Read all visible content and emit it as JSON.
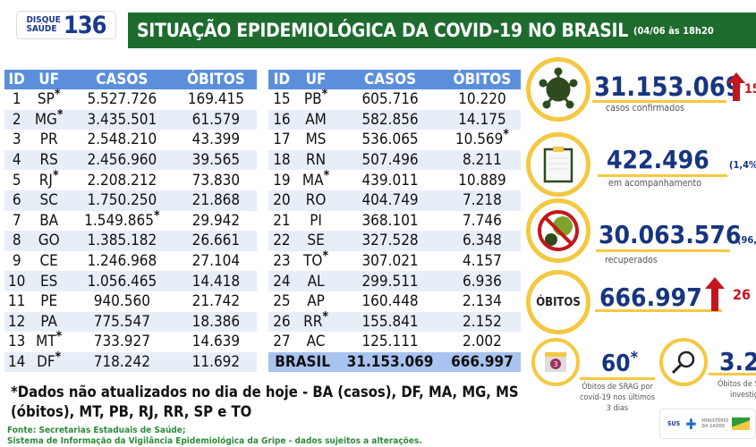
{
  "header": {
    "logo_top": "DISQUE",
    "logo_bottom": "SAÚDE",
    "logo_number": "136",
    "title": "SITUAÇÃO EPIDEMIOLÓGICA DA COVID-19 NO BRASIL",
    "date": "(04/06 às 18h20"
  },
  "table": {
    "columns": [
      "ID",
      "UF",
      "CASOS",
      "ÓBITOS"
    ],
    "left": [
      [
        "1",
        "SP",
        "5.527.726",
        "169.415",
        "uf"
      ],
      [
        "2",
        "MG",
        "3.435.501",
        "61.579",
        "uf"
      ],
      [
        "3",
        "PR",
        "2.548.210",
        "43.399",
        ""
      ],
      [
        "4",
        "RS",
        "2.456.960",
        "39.565",
        ""
      ],
      [
        "5",
        "RJ",
        "2.208.212",
        "73.830",
        "uf"
      ],
      [
        "6",
        "SC",
        "1.750.250",
        "21.868",
        ""
      ],
      [
        "7",
        "BA",
        "1.549.865",
        "29.942",
        "casos"
      ],
      [
        "8",
        "GO",
        "1.385.182",
        "26.661",
        ""
      ],
      [
        "9",
        "CE",
        "1.246.968",
        "27.104",
        ""
      ],
      [
        "10",
        "ES",
        "1.056.465",
        "14.418",
        ""
      ],
      [
        "11",
        "PE",
        "940.560",
        "21.742",
        ""
      ],
      [
        "12",
        "PA",
        "775.547",
        "18.386",
        ""
      ],
      [
        "13",
        "MT",
        "733.927",
        "14.639",
        "uf"
      ],
      [
        "14",
        "DF",
        "718.242",
        "11.692",
        "uf"
      ]
    ],
    "right": [
      [
        "15",
        "PB",
        "605.716",
        "10.220",
        "uf"
      ],
      [
        "16",
        "AM",
        "582.856",
        "14.175",
        ""
      ],
      [
        "17",
        "MS",
        "536.065",
        "10.569",
        "obitos"
      ],
      [
        "18",
        "RN",
        "507.496",
        "8.211",
        ""
      ],
      [
        "19",
        "MA",
        "439.011",
        "10.889",
        "uf"
      ],
      [
        "20",
        "RO",
        "404.749",
        "7.218",
        ""
      ],
      [
        "21",
        "PI",
        "368.101",
        "7.746",
        ""
      ],
      [
        "22",
        "SE",
        "327.528",
        "6.348",
        ""
      ],
      [
        "23",
        "TO",
        "307.021",
        "4.157",
        "uf"
      ],
      [
        "24",
        "AL",
        "299.511",
        "6.936",
        ""
      ],
      [
        "25",
        "AP",
        "160.448",
        "2.134",
        ""
      ],
      [
        "26",
        "RR",
        "155.841",
        "2.152",
        "uf"
      ],
      [
        "27",
        "AC",
        "125.111",
        "2.002",
        ""
      ]
    ],
    "total": {
      "label": "BRASIL",
      "casos": "31.153.069",
      "obitos": "666.997"
    },
    "asterisk": "*"
  },
  "note": "*Dados não atualizados no dia de hoje - BA (casos), DF, MA, MG, MS (óbitos), MT, PB, RJ, RR, SP e TO",
  "source_1": "Fonte: Secretarias Estaduais de Saúde;",
  "source_2": "Sistema de Informação da Vigilância Epidemiológica da Gripe - dados sujeitos a alterações.",
  "stats": {
    "confirmed": {
      "value": "31.153.069",
      "label": "casos confirmados",
      "increase": "15"
    },
    "monitoring": {
      "value": "422.496",
      "label": "em acompanhamento",
      "pct": "(1,4%"
    },
    "recovered": {
      "value": "30.063.576",
      "label": "recuperados",
      "pct": "(96,"
    },
    "deaths": {
      "icon_label": "ÓBITOS",
      "value": "666.997",
      "increase": "26"
    },
    "srag": {
      "value": "60",
      "asterisk": "*",
      "label": "Óbitos de SRAG por covid-19 nos últimos 3 dias",
      "calendar": "3"
    },
    "investigation": {
      "value": "3.2",
      "label_1": "Óbitos de S",
      "label_2": "investig"
    }
  },
  "footer_logo": {
    "sus": "SUS",
    "ministry": "MINISTÉRIO DA SAÚDE"
  },
  "colors": {
    "green": "#1e6b2e",
    "blue": "#17357f",
    "header_blue": "#5b8fdc",
    "yellow": "#f4c842",
    "red": "#c4161c"
  }
}
